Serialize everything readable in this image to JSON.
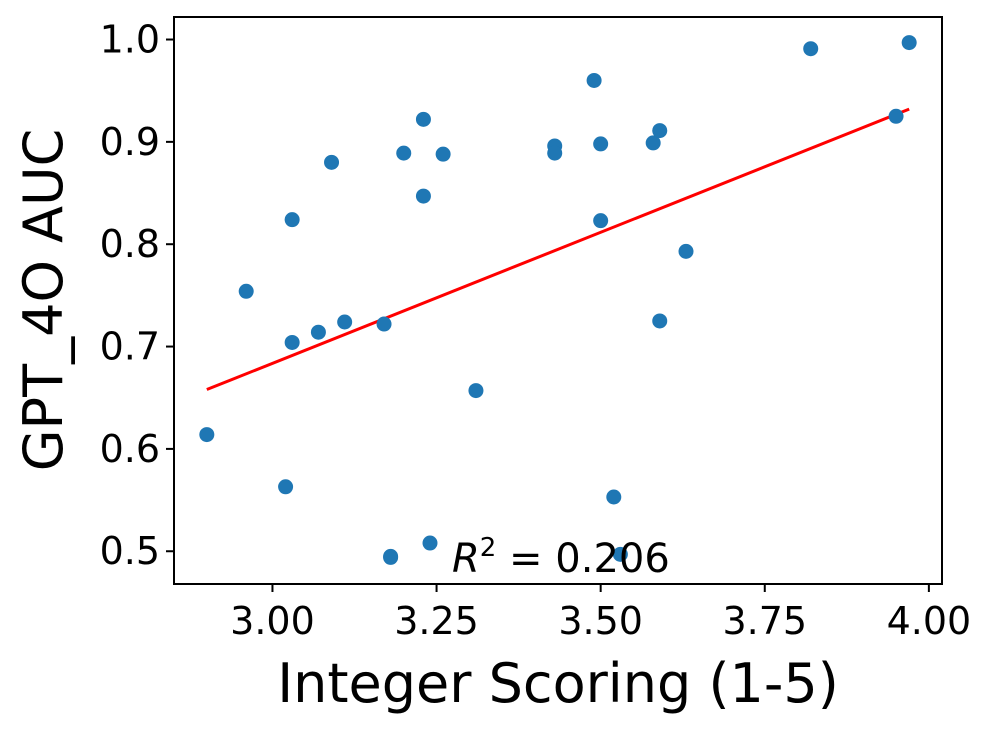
{
  "chart_data": {
    "type": "scatter",
    "title": "",
    "xlabel": "Integer Scoring (1-5)",
    "ylabel": "GPT_4O AUC",
    "xlim": [
      2.85,
      4.02
    ],
    "ylim": [
      0.468,
      1.022
    ],
    "xticks": [
      {
        "value": 3.0,
        "label": "3.00"
      },
      {
        "value": 3.25,
        "label": "3.25"
      },
      {
        "value": 3.5,
        "label": "3.50"
      },
      {
        "value": 3.75,
        "label": "3.75"
      },
      {
        "value": 4.0,
        "label": "4.00"
      }
    ],
    "yticks": [
      {
        "value": 0.5,
        "label": "0.5"
      },
      {
        "value": 0.6,
        "label": "0.6"
      },
      {
        "value": 0.7,
        "label": "0.7"
      },
      {
        "value": 0.8,
        "label": "0.8"
      },
      {
        "value": 0.9,
        "label": "0.9"
      },
      {
        "value": 1.0,
        "label": "1.0"
      }
    ],
    "grid": false,
    "legend": "none",
    "points": {
      "color": "#1f77b4",
      "x": [
        2.9,
        2.96,
        3.02,
        3.03,
        3.03,
        3.07,
        3.09,
        3.11,
        3.17,
        3.18,
        3.18,
        3.2,
        3.23,
        3.23,
        3.24,
        3.26,
        3.31,
        3.43,
        3.43,
        3.49,
        3.5,
        3.5,
        3.52,
        3.53,
        3.58,
        3.59,
        3.59,
        3.63,
        3.82,
        3.95,
        3.97
      ],
      "y": [
        0.614,
        0.754,
        0.563,
        0.824,
        0.704,
        0.714,
        0.88,
        0.724,
        0.722,
        0.494,
        0.495,
        0.889,
        0.922,
        0.847,
        0.508,
        0.888,
        0.657,
        0.896,
        0.889,
        0.96,
        0.898,
        0.823,
        0.553,
        0.497,
        0.899,
        0.911,
        0.725,
        0.793,
        0.991,
        0.925,
        0.997
      ]
    },
    "fit_line": {
      "color": "#ff0000",
      "x": [
        2.9,
        3.97
      ],
      "y": [
        0.658,
        0.932
      ]
    },
    "annotation": {
      "label": "R",
      "superscript": "2",
      "text": " = 0.206"
    }
  }
}
